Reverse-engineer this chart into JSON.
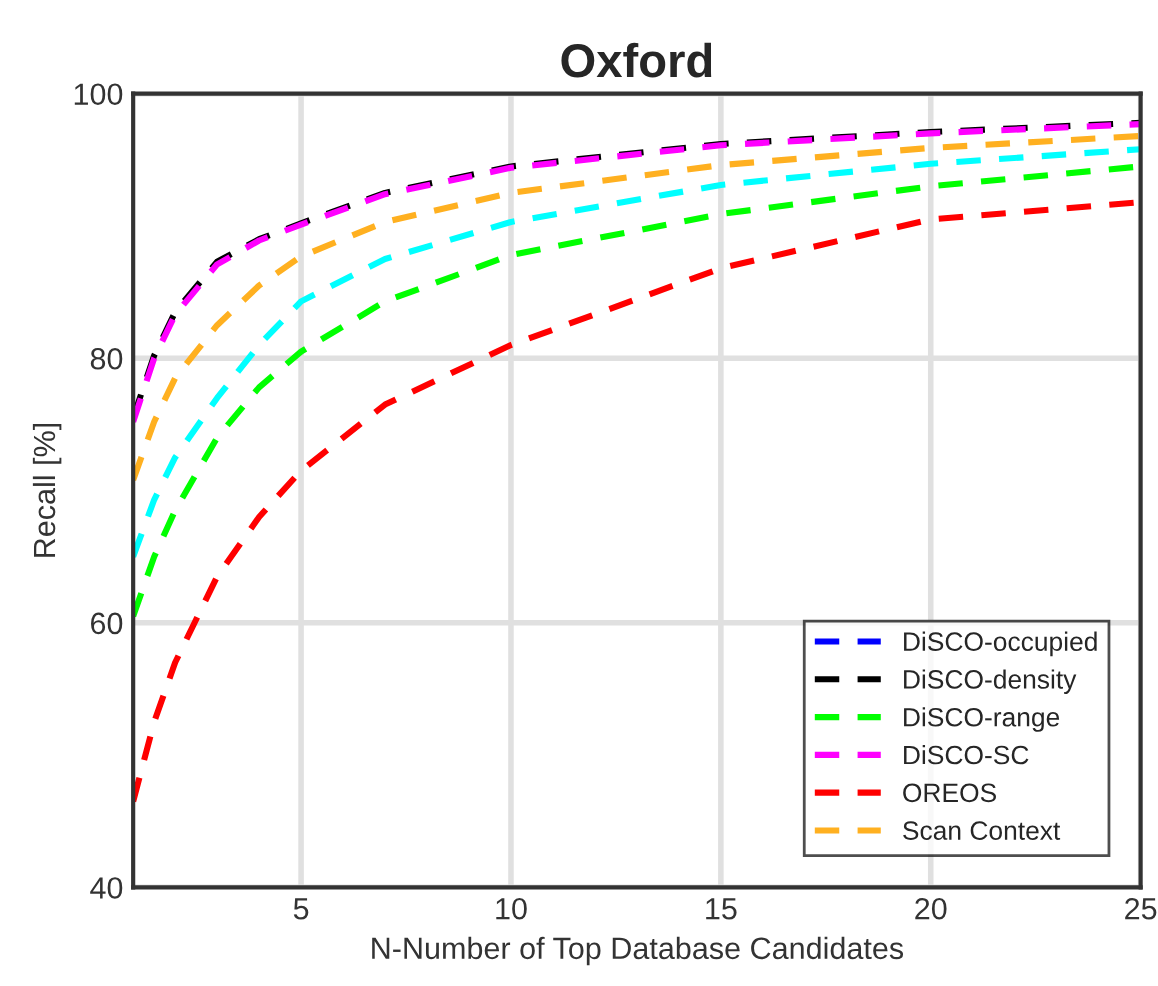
{
  "chart_data": {
    "type": "line",
    "title": "Oxford",
    "xlabel": "N-Number of Top Database Candidates",
    "ylabel": "Recall [%]",
    "x": [
      1,
      1.5,
      2,
      3,
      4,
      5,
      7,
      10,
      15,
      20,
      25
    ],
    "series": [
      {
        "name": "DiSCO-occupied",
        "color": "#0000ff",
        "values": [
          null,
          null,
          null,
          null,
          null,
          null,
          null,
          null,
          null,
          null,
          null
        ]
      },
      {
        "name": "DiSCO-density",
        "color": "#000000",
        "values": [
          75.5,
          80.2,
          83.5,
          87.3,
          89,
          90.2,
          92.5,
          94.5,
          96.2,
          97.1,
          97.8
        ]
      },
      {
        "name": "DiSCO-range",
        "color": "#00ff00",
        "values": [
          60.5,
          65,
          68.5,
          74,
          77.8,
          80.5,
          84.3,
          87.8,
          90.9,
          93,
          94.5
        ]
      },
      {
        "name": "DiSCO-SC",
        "color": "#ff00ff",
        "values": [
          75.2,
          80,
          83.3,
          87.1,
          88.9,
          90.1,
          92.4,
          94.4,
          96.1,
          97.0,
          97.7
        ]
      },
      {
        "name": "OREOS",
        "color": "#ff0000",
        "values": [
          46.5,
          52.5,
          57,
          63.5,
          68,
          71.5,
          76.5,
          81,
          86.8,
          90.5,
          91.8
        ]
      },
      {
        "name": "Scan Context",
        "color": "#ffb020",
        "values": [
          70.8,
          75.2,
          78.5,
          82.5,
          85.5,
          87.7,
          90.3,
          92.5,
          94.6,
          95.9,
          96.8
        ]
      },
      {
        "color": "#00ffff",
        "values": [
          65,
          69.3,
          72.5,
          77,
          81,
          84.3,
          87.5,
          90.3,
          93.1,
          94.7,
          95.8
        ]
      }
    ],
    "xlim": [
      1,
      25
    ],
    "xticks": [
      5,
      10,
      15,
      20,
      25
    ],
    "ylim": [
      40,
      100
    ],
    "yticks": [
      40,
      60,
      80,
      100
    ],
    "grid": true,
    "legend": "bottom right",
    "line_style": "dashed",
    "marker": "none"
  }
}
